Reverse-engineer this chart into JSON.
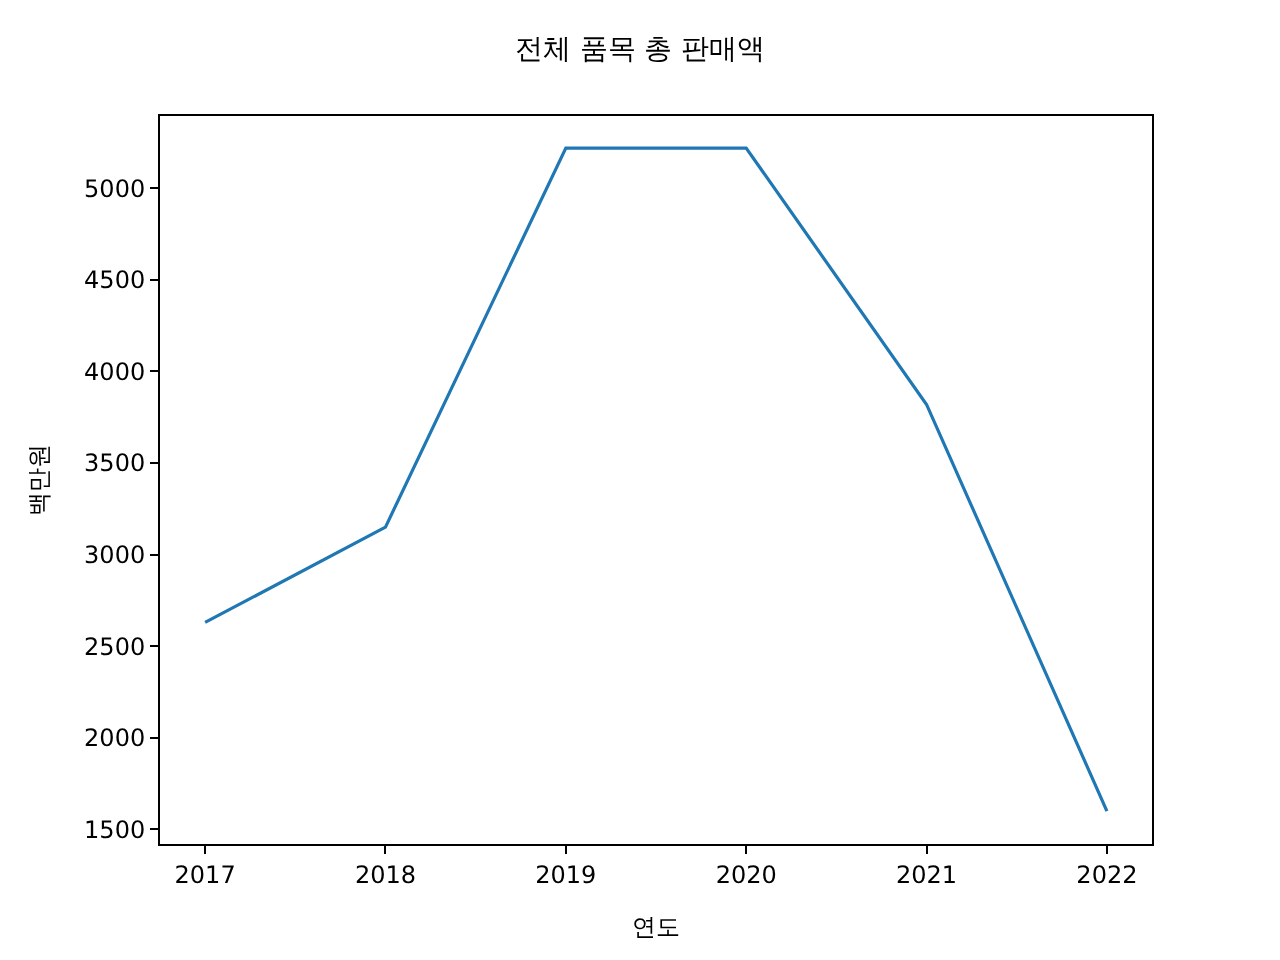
{
  "chart_data": {
    "type": "line",
    "title": "전체 품목 총 판매액",
    "xlabel": "연도",
    "ylabel": "백만원",
    "x": [
      2017,
      2018,
      2019,
      2020,
      2021,
      2022
    ],
    "series": [
      {
        "color": "#1f77b4",
        "values": [
          2630,
          3150,
          5220,
          5220,
          3820,
          1600
        ]
      }
    ],
    "xlim": [
      2016.75,
      2022.25
    ],
    "xticks": [
      2017,
      2018,
      2019,
      2020,
      2021,
      2022
    ],
    "ylim": [
      1420,
      5395
    ],
    "yticks": [
      1500,
      2000,
      2500,
      3000,
      3500,
      4000,
      4500,
      5000
    ],
    "marker": "none",
    "line_style": "solid"
  }
}
